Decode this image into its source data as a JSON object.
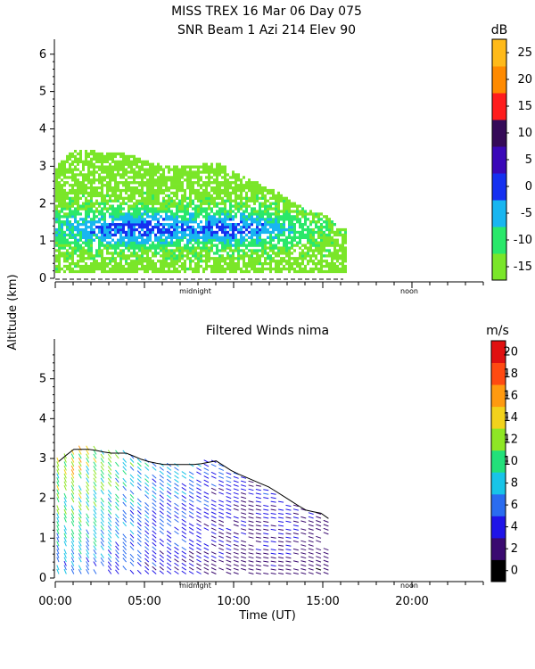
{
  "header": {
    "line1": "MISS TREX  16 Mar 06 Day 075",
    "line2": "SNR Beam 1 Azi 214 Elev 90"
  },
  "shared": {
    "ylabel": "Altitude (km)",
    "xlabel": "Time (UT)",
    "x_ticklabels": [
      "00:00",
      "05:00",
      "10:00",
      "15:00",
      "20:00"
    ],
    "markers": {
      "midnight": "midnight",
      "noon": "noon"
    }
  },
  "chart_data": [
    {
      "type": "heatmap",
      "title": "SNR Beam 1 Azi 214 Elev 90",
      "colorbar_unit": "dB",
      "colorbar_ticks": [
        -15,
        -10,
        -5,
        0,
        5,
        10,
        15,
        20,
        25
      ],
      "colorbar_colors": [
        "#7ae629",
        "#2ae86a",
        "#18b6f0",
        "#1530f0",
        "#3a08b8",
        "#350a58",
        "#ff1d1d",
        "#ff8a00",
        "#ffba1a"
      ],
      "x_range_hours": [
        0,
        24
      ],
      "ylim": [
        0,
        6.4
      ],
      "yticks": [
        0,
        1,
        2,
        3,
        4,
        5,
        6
      ],
      "x_ticklabels": [
        "00:00",
        "05:00",
        "10:00",
        "15:00",
        "20:00"
      ],
      "data_extent_hours": [
        0,
        16.3
      ],
      "approx_top_km": [
        3.0,
        3.4,
        3.4,
        3.3,
        3.3,
        3.1,
        3.0,
        3.0,
        3.0,
        3.1,
        2.8,
        2.6,
        2.4,
        2.1,
        1.8,
        1.7,
        1.3
      ],
      "approx_peak_snr_db_by_hour": [
        -7,
        -6,
        -4,
        -2,
        -1,
        0,
        -1,
        -3,
        -3,
        -2,
        -1,
        -3,
        -5,
        -8,
        -10,
        -12,
        -14
      ]
    },
    {
      "type": "wind_barbs",
      "title": "Filtered Winds nima",
      "colorbar_unit": "m/s",
      "colorbar_ticks": [
        0,
        2,
        4,
        6,
        8,
        10,
        12,
        14,
        16,
        18,
        20
      ],
      "colorbar_colors": [
        "#000000",
        "#3a0a70",
        "#1f14e8",
        "#2a6cf0",
        "#18c4e8",
        "#22e07a",
        "#8ee625",
        "#f2d21b",
        "#ff9a10",
        "#ff4a12",
        "#e01010"
      ],
      "x_range_hours": [
        0,
        24
      ],
      "ylim": [
        0,
        6
      ],
      "yticks": [
        0,
        1,
        2,
        3,
        4,
        5
      ],
      "x_ticklabels": [
        "00:00",
        "05:00",
        "10:00",
        "15:00",
        "20:00"
      ],
      "data_extent_hours": [
        0.2,
        15.4
      ],
      "approx_speed_ms_by_hour": [
        11,
        12,
        11,
        10,
        9,
        8,
        7,
        7,
        6,
        5,
        5,
        4,
        5,
        5,
        4,
        4
      ],
      "approx_direction_deg_by_hour": [
        200,
        205,
        210,
        215,
        220,
        225,
        230,
        235,
        240,
        245,
        250,
        255,
        260,
        260,
        255,
        250
      ]
    }
  ]
}
